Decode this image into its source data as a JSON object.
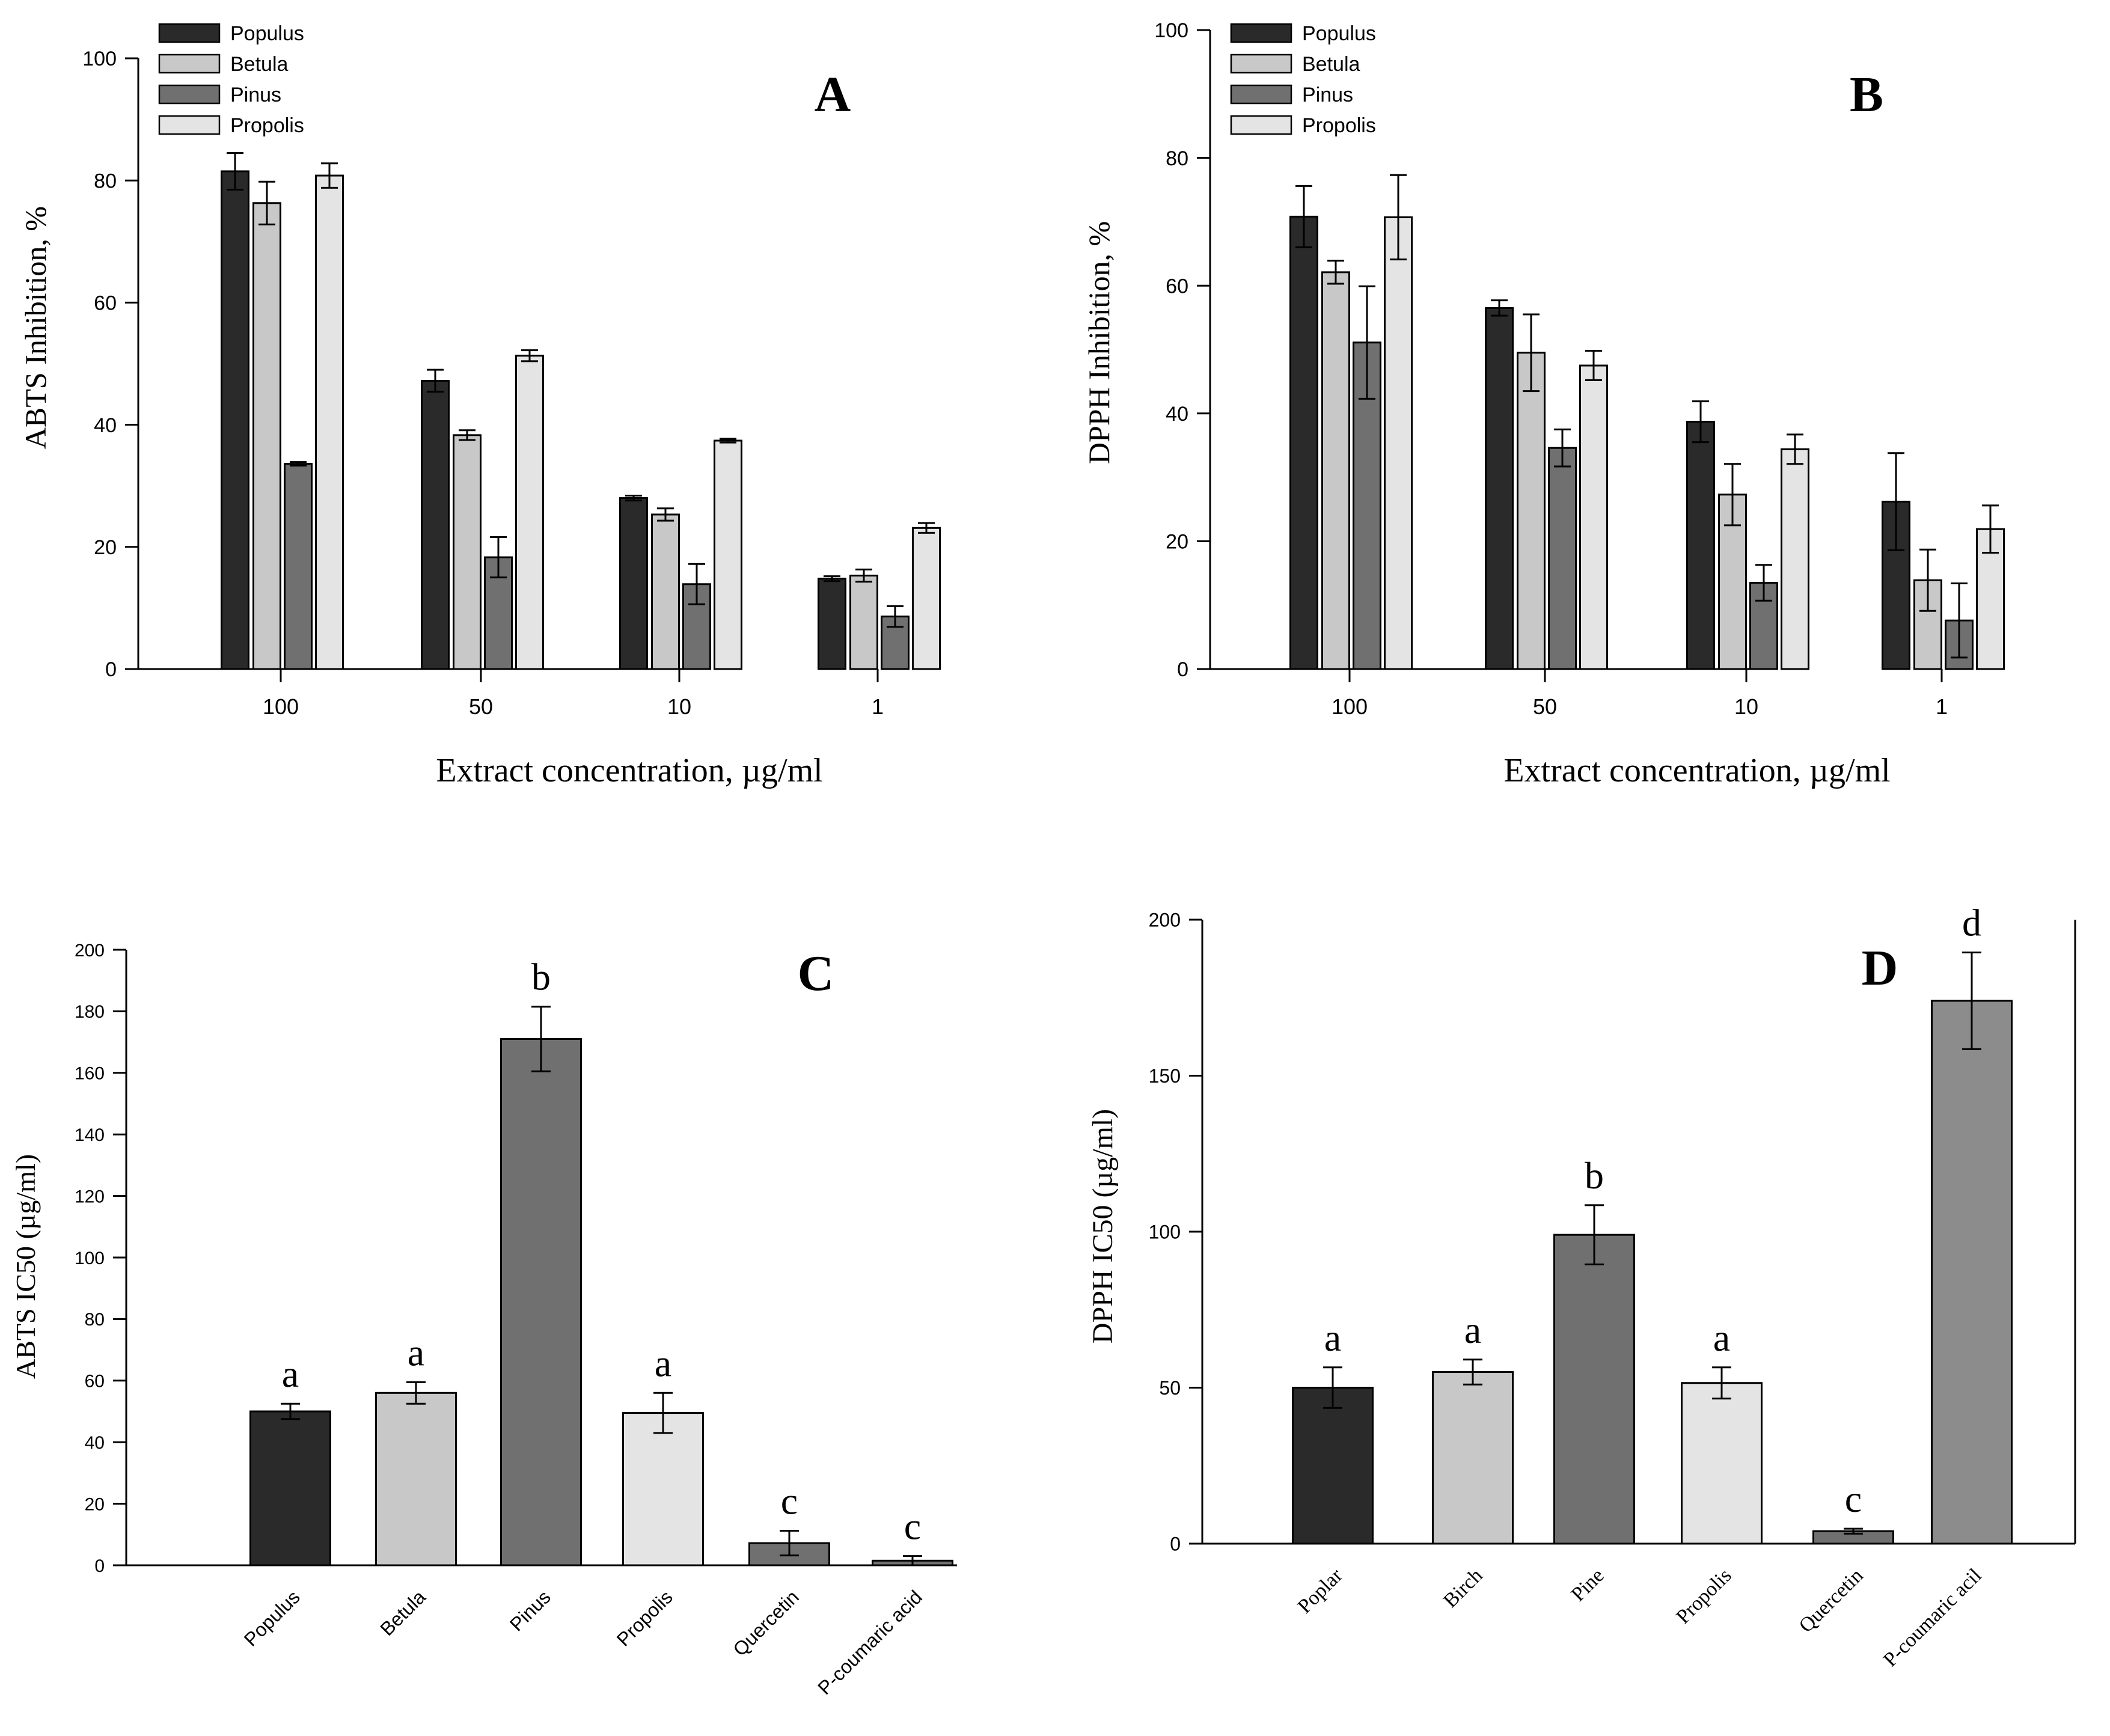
{
  "colors": {
    "populus": "#2a2a2a",
    "betula": "#c8c8c8",
    "pinus": "#707070",
    "propolis": "#e4e4e4",
    "quercetin": "#707070",
    "p_coumaric": "#8c8c8c",
    "axis": "#000000",
    "background": "#ffffff"
  },
  "chart_data": [
    {
      "panel": "A",
      "type": "bar",
      "title": "A",
      "xlabel": "Extract concentration, µg/ml",
      "ylabel": "ABTS Inhibition, %",
      "ylim": [
        0,
        100
      ],
      "yticks": [
        0,
        20,
        40,
        60,
        80,
        100
      ],
      "categories": [
        "100",
        "50",
        "10",
        "1"
      ],
      "legend_position": "top-left",
      "series": [
        {
          "name": "Populus",
          "color_key": "populus",
          "values": [
            81.5,
            47.2,
            28.0,
            14.8
          ],
          "errors": [
            3.0,
            1.8,
            0.4,
            0.4
          ]
        },
        {
          "name": "Betula",
          "color_key": "betula",
          "values": [
            76.3,
            38.3,
            25.3,
            15.3
          ],
          "errors": [
            3.5,
            0.8,
            1.0,
            1.0
          ]
        },
        {
          "name": "Pinus",
          "color_key": "pinus",
          "values": [
            33.6,
            18.3,
            13.9,
            8.6
          ],
          "errors": [
            0.3,
            3.3,
            3.3,
            1.7
          ]
        },
        {
          "name": "Propolis",
          "color_key": "propolis",
          "values": [
            80.8,
            51.3,
            37.4,
            23.1
          ],
          "errors": [
            2.0,
            0.9,
            0.3,
            0.8
          ]
        }
      ]
    },
    {
      "panel": "B",
      "type": "bar",
      "title": "B",
      "xlabel": "Extract concentration, µg/ml",
      "ylabel": "DPPH Inhibition, %",
      "ylim": [
        0,
        100
      ],
      "yticks": [
        0,
        20,
        40,
        60,
        80,
        100
      ],
      "categories": [
        "100",
        "50",
        "10",
        "1"
      ],
      "legend_position": "top-left",
      "series": [
        {
          "name": "Populus",
          "color_key": "populus",
          "values": [
            70.8,
            56.5,
            38.7,
            26.2
          ],
          "errors": [
            4.8,
            1.2,
            3.2,
            7.6
          ]
        },
        {
          "name": "Betula",
          "color_key": "betula",
          "values": [
            62.1,
            49.5,
            27.3,
            13.9
          ],
          "errors": [
            1.8,
            6.0,
            4.8,
            4.8
          ]
        },
        {
          "name": "Pinus",
          "color_key": "pinus",
          "values": [
            51.1,
            34.6,
            13.5,
            7.6
          ],
          "errors": [
            8.8,
            2.9,
            2.8,
            5.8
          ]
        },
        {
          "name": "Propolis",
          "color_key": "propolis",
          "values": [
            70.7,
            47.5,
            34.4,
            21.9
          ],
          "errors": [
            6.6,
            2.3,
            2.3,
            3.7
          ]
        }
      ]
    },
    {
      "panel": "C",
      "type": "bar",
      "title": "C",
      "xlabel": "",
      "ylabel": "ABTS IC50 (µg/ml)",
      "ylim": [
        0,
        200
      ],
      "yticks": [
        0,
        20,
        40,
        60,
        80,
        100,
        120,
        140,
        160,
        180,
        200
      ],
      "categories": [
        "Populus",
        "Betula",
        "Pinus",
        "Propolis",
        "Quercetin",
        "P-coumaric acid"
      ],
      "values": [
        50.0,
        56.0,
        171.0,
        49.5,
        7.2,
        1.5
      ],
      "errors": [
        2.5,
        3.5,
        10.5,
        6.5,
        4.0,
        1.5
      ],
      "letters": [
        "a",
        "a",
        "b",
        "a",
        "c",
        "c"
      ],
      "color_keys": [
        "populus",
        "betula",
        "pinus",
        "propolis",
        "quercetin",
        "quercetin"
      ]
    },
    {
      "panel": "D",
      "type": "bar",
      "title": "D",
      "xlabel": "",
      "ylabel": "DPPH IC50 (µg/ml)",
      "ylim": [
        0,
        200
      ],
      "yticks": [
        0,
        50,
        100,
        150,
        200
      ],
      "categories": [
        "Poplar",
        "Birch",
        "Pine",
        "Propolis",
        "Quercetin",
        "P-coumaric acil"
      ],
      "values": [
        50.0,
        55.0,
        99.0,
        51.5,
        4.0,
        174.0
      ],
      "errors": [
        6.5,
        4.0,
        9.5,
        5.0,
        0.8,
        15.5
      ],
      "letters": [
        "a",
        "a",
        "b",
        "a",
        "c",
        "d"
      ],
      "color_keys": [
        "populus",
        "betula",
        "pinus",
        "propolis",
        "quercetin",
        "p_coumaric"
      ]
    }
  ]
}
